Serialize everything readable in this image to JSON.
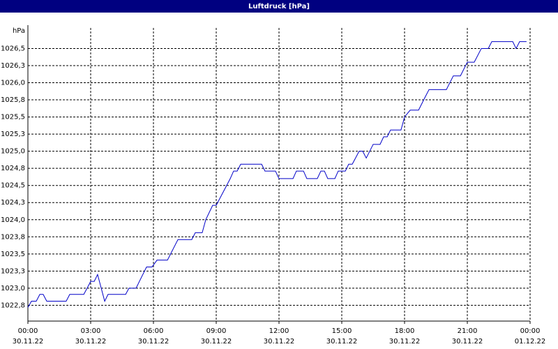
{
  "chart_data": {
    "type": "line",
    "title": "Luftdruck [hPa]",
    "y_label": "hPa",
    "x": [
      0,
      0.17,
      0.4,
      0.57,
      0.73,
      0.9,
      1.83,
      2,
      2.67,
      2.83,
      3,
      3.17,
      3.33,
      3.67,
      3.83,
      4.67,
      4.83,
      5.17,
      5.33,
      5.67,
      5.93,
      6.17,
      6.67,
      7.17,
      7.83,
      8,
      8.33,
      8.5,
      8.83,
      9,
      9.67,
      9.83,
      10,
      10.17,
      11.17,
      11.33,
      11.83,
      12,
      12.67,
      12.83,
      13.17,
      13.33,
      13.83,
      14,
      14.17,
      14.33,
      14.67,
      14.83,
      15.17,
      15.33,
      15.5,
      15.83,
      16,
      16.17,
      16.5,
      16.83,
      17,
      17.17,
      17.33,
      17.83,
      18,
      18.27,
      18.67,
      19,
      19.17,
      20,
      20.33,
      20.67,
      21,
      21.33,
      21.67,
      22,
      22.17,
      23.17,
      23.33,
      23.5,
      23.83
    ],
    "series": [
      {
        "name": "Luftdruck",
        "color": "#0000c8",
        "values": [
          1022.72,
          1022.81,
          1022.81,
          1022.91,
          1022.91,
          1022.81,
          1022.81,
          1022.91,
          1022.91,
          1023.0,
          1023.1,
          1023.1,
          1023.2,
          1022.81,
          1022.91,
          1022.91,
          1023.0,
          1023.0,
          1023.1,
          1023.31,
          1023.31,
          1023.41,
          1023.41,
          1023.71,
          1023.71,
          1023.81,
          1023.81,
          1024.0,
          1024.21,
          1024.21,
          1024.6,
          1024.71,
          1024.71,
          1024.81,
          1024.81,
          1024.71,
          1024.71,
          1024.6,
          1024.6,
          1024.71,
          1024.71,
          1024.6,
          1024.6,
          1024.71,
          1024.71,
          1024.6,
          1024.6,
          1024.71,
          1024.71,
          1024.81,
          1024.81,
          1025.0,
          1025.0,
          1024.9,
          1025.1,
          1025.1,
          1025.21,
          1025.21,
          1025.31,
          1025.31,
          1025.5,
          1025.6,
          1025.6,
          1025.8,
          1025.9,
          1025.9,
          1026.1,
          1026.1,
          1026.3,
          1026.3,
          1026.5,
          1026.5,
          1026.6,
          1026.6,
          1026.5,
          1026.6,
          1026.6
        ]
      }
    ],
    "xlim": [
      0,
      24
    ],
    "xticks": [
      {
        "value": 0,
        "label": "00:00"
      },
      {
        "value": 3,
        "label": "03:00"
      },
      {
        "value": 6,
        "label": "06:00"
      },
      {
        "value": 9,
        "label": "09:00"
      },
      {
        "value": 12,
        "label": "12:00"
      },
      {
        "value": 15,
        "label": "15:00"
      },
      {
        "value": 18,
        "label": "18:00"
      },
      {
        "value": 21,
        "label": "21:00"
      },
      {
        "value": 24,
        "label": "00:00"
      }
    ],
    "xtick_dates": [
      "30.11.22",
      "30.11.22",
      "30.11.22",
      "30.11.22",
      "30.11.22",
      "30.11.22",
      "30.11.22",
      "30.11.22",
      "01.12.22"
    ],
    "ylim": [
      1022.52,
      1026.8
    ],
    "yticks": [
      {
        "value": 1022.75,
        "label": "1022,8"
      },
      {
        "value": 1023.0,
        "label": "1023,0"
      },
      {
        "value": 1023.25,
        "label": "1023,3"
      },
      {
        "value": 1023.5,
        "label": "1023,5"
      },
      {
        "value": 1023.75,
        "label": "1023,8"
      },
      {
        "value": 1024.0,
        "label": "1024,0"
      },
      {
        "value": 1024.25,
        "label": "1024,3"
      },
      {
        "value": 1024.5,
        "label": "1024,5"
      },
      {
        "value": 1024.75,
        "label": "1024,8"
      },
      {
        "value": 1025.0,
        "label": "1025,0"
      },
      {
        "value": 1025.25,
        "label": "1025,3"
      },
      {
        "value": 1025.5,
        "label": "1025,5"
      },
      {
        "value": 1025.75,
        "label": "1025,8"
      },
      {
        "value": 1026.0,
        "label": "1026,0"
      },
      {
        "value": 1026.25,
        "label": "1026,3"
      },
      {
        "value": 1026.5,
        "label": "1026,5"
      }
    ],
    "grid": true
  }
}
